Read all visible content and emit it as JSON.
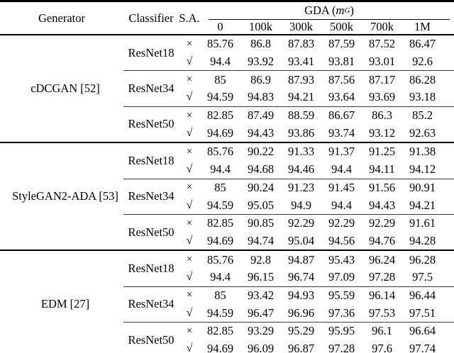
{
  "table": {
    "header": {
      "generator": "Generator",
      "classifier": "Classifier",
      "sa": "S.A.",
      "gda": {
        "prefix": "GDA (",
        "variable": "m",
        "subscript": "G",
        "suffix": ")"
      },
      "subcolumns": [
        "0",
        "100k",
        "300k",
        "500k",
        "700k",
        "1M"
      ]
    },
    "sa_symbols": {
      "cross": "×",
      "check": "√"
    },
    "groups": [
      {
        "generator": "cDCGAN [52]",
        "classifiers": [
          {
            "name": "ResNet18",
            "rows": [
              {
                "sa": "cross",
                "values": [
                  "85.76",
                  "86.8",
                  "87.83",
                  "87.59",
                  "87.52",
                  "86.47"
                ]
              },
              {
                "sa": "check",
                "values": [
                  "94.4",
                  "93.92",
                  "93.41",
                  "93.81",
                  "93.01",
                  "92.6"
                ]
              }
            ]
          },
          {
            "name": "ResNet34",
            "rows": [
              {
                "sa": "cross",
                "values": [
                  "85",
                  "86.9",
                  "87.93",
                  "87.56",
                  "87.17",
                  "86.28"
                ]
              },
              {
                "sa": "check",
                "values": [
                  "94.59",
                  "94.83",
                  "94.21",
                  "93.64",
                  "93.69",
                  "93.18"
                ]
              }
            ]
          },
          {
            "name": "ResNet50",
            "rows": [
              {
                "sa": "cross",
                "values": [
                  "82.85",
                  "87.49",
                  "88.59",
                  "86.67",
                  "86.3",
                  "85.2"
                ]
              },
              {
                "sa": "check",
                "values": [
                  "94.69",
                  "94.43",
                  "93.86",
                  "93.74",
                  "93.12",
                  "92.63"
                ]
              }
            ]
          }
        ]
      },
      {
        "generator": "StyleGAN2-ADA [53]",
        "classifiers": [
          {
            "name": "ResNet18",
            "rows": [
              {
                "sa": "cross",
                "values": [
                  "85.76",
                  "90.22",
                  "91.33",
                  "91.37",
                  "91.25",
                  "91.38"
                ]
              },
              {
                "sa": "check",
                "values": [
                  "94.4",
                  "94.68",
                  "94.46",
                  "94.4",
                  "94.11",
                  "94.12"
                ]
              }
            ]
          },
          {
            "name": "ResNet34",
            "rows": [
              {
                "sa": "cross",
                "values": [
                  "85",
                  "90.24",
                  "91.23",
                  "91.45",
                  "91.56",
                  "90.91"
                ]
              },
              {
                "sa": "check",
                "values": [
                  "94.59",
                  "95.05",
                  "94.9",
                  "94.4",
                  "94.43",
                  "94.21"
                ]
              }
            ]
          },
          {
            "name": "ResNet50",
            "rows": [
              {
                "sa": "cross",
                "values": [
                  "82.85",
                  "90.85",
                  "92.29",
                  "92.29",
                  "92.29",
                  "91.61"
                ]
              },
              {
                "sa": "check",
                "values": [
                  "94.69",
                  "94.74",
                  "95.04",
                  "94.56",
                  "94.76",
                  "94.28"
                ]
              }
            ]
          }
        ]
      },
      {
        "generator": "EDM [27]",
        "classifiers": [
          {
            "name": "ResNet18",
            "rows": [
              {
                "sa": "cross",
                "values": [
                  "85.76",
                  "92.8",
                  "94.87",
                  "95.43",
                  "96.24",
                  "96.28"
                ]
              },
              {
                "sa": "check",
                "values": [
                  "94.4",
                  "96.15",
                  "96.74",
                  "97.09",
                  "97.28",
                  "97.5"
                ]
              }
            ]
          },
          {
            "name": "ResNet34",
            "rows": [
              {
                "sa": "cross",
                "values": [
                  "85",
                  "93.42",
                  "94.93",
                  "95.59",
                  "96.14",
                  "96.44"
                ]
              },
              {
                "sa": "check",
                "values": [
                  "94.59",
                  "96.47",
                  "96.96",
                  "97.36",
                  "97.53",
                  "97.51"
                ]
              }
            ]
          },
          {
            "name": "ResNet50",
            "rows": [
              {
                "sa": "cross",
                "values": [
                  "82.85",
                  "93.29",
                  "95.29",
                  "95.95",
                  "96.1",
                  "96.64"
                ]
              },
              {
                "sa": "check",
                "values": [
                  "94.69",
                  "96.09",
                  "96.87",
                  "97.28",
                  "97.6",
                  "97.74"
                ]
              }
            ]
          }
        ]
      }
    ]
  }
}
